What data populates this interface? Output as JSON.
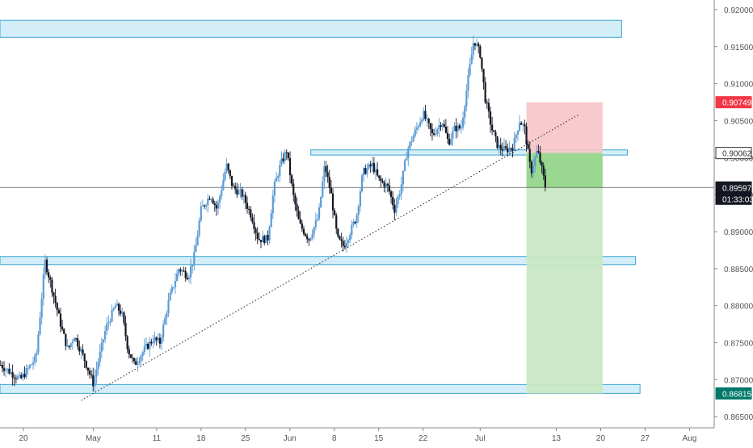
{
  "chart_data": {
    "type": "candlestick",
    "y_axis": {
      "ticks": [
        "0.92000",
        "0.91500",
        "0.91000",
        "0.90500",
        "0.90000",
        "0.89500",
        "0.89000",
        "0.88500",
        "0.88000",
        "0.87500",
        "0.87000",
        "0.86500"
      ],
      "range": [
        0.8635,
        0.9213
      ]
    },
    "x_axis": {
      "ticks": [
        {
          "label": "20",
          "day": 0
        },
        {
          "label": "May",
          "day": 11
        },
        {
          "label": "11",
          "day": 21
        },
        {
          "label": "18",
          "day": 28
        },
        {
          "label": "25",
          "day": 35
        },
        {
          "label": "Jun",
          "day": 42
        },
        {
          "label": "8",
          "day": 49
        },
        {
          "label": "15",
          "day": 56
        },
        {
          "label": "22",
          "day": 63
        },
        {
          "label": "Jul",
          "day": 72
        },
        {
          "label": "13",
          "day": 84
        },
        {
          "label": "20",
          "day": 91
        },
        {
          "label": "27",
          "day": 98
        },
        {
          "label": "Aug",
          "day": 105
        }
      ],
      "range": [
        -3.7,
        108.9
      ]
    },
    "anchors": [
      {
        "day": -3.6,
        "price": 0.872
      },
      {
        "day": -0.5,
        "price": 0.87
      },
      {
        "day": 2,
        "price": 0.873
      },
      {
        "day": 3.4,
        "price": 0.886
      },
      {
        "day": 4.6,
        "price": 0.882
      },
      {
        "day": 6,
        "price": 0.877
      },
      {
        "day": 7,
        "price": 0.874
      },
      {
        "day": 8,
        "price": 0.876
      },
      {
        "day": 9.5,
        "price": 0.873
      },
      {
        "day": 11,
        "price": 0.8695
      },
      {
        "day": 13,
        "price": 0.877
      },
      {
        "day": 14.5,
        "price": 0.88
      },
      {
        "day": 15.5,
        "price": 0.879
      },
      {
        "day": 16.5,
        "price": 0.874
      },
      {
        "day": 17.5,
        "price": 0.872
      },
      {
        "day": 19,
        "price": 0.874
      },
      {
        "day": 20.5,
        "price": 0.8755
      },
      {
        "day": 21.5,
        "price": 0.875
      },
      {
        "day": 23,
        "price": 0.881
      },
      {
        "day": 24.5,
        "price": 0.885
      },
      {
        "day": 26,
        "price": 0.884
      },
      {
        "day": 27,
        "price": 0.887
      },
      {
        "day": 28,
        "price": 0.893
      },
      {
        "day": 29.5,
        "price": 0.895
      },
      {
        "day": 30.5,
        "price": 0.893
      },
      {
        "day": 32,
        "price": 0.899
      },
      {
        "day": 33,
        "price": 0.896
      },
      {
        "day": 34.5,
        "price": 0.895
      },
      {
        "day": 36,
        "price": 0.892
      },
      {
        "day": 37,
        "price": 0.889
      },
      {
        "day": 38.5,
        "price": 0.889
      },
      {
        "day": 39.5,
        "price": 0.896
      },
      {
        "day": 40.5,
        "price": 0.899
      },
      {
        "day": 41.5,
        "price": 0.901
      },
      {
        "day": 42.5,
        "price": 0.895
      },
      {
        "day": 43.5,
        "price": 0.891
      },
      {
        "day": 45,
        "price": 0.889
      },
      {
        "day": 46.5,
        "price": 0.892
      },
      {
        "day": 47.5,
        "price": 0.899
      },
      {
        "day": 48.5,
        "price": 0.895
      },
      {
        "day": 49.5,
        "price": 0.889
      },
      {
        "day": 50.5,
        "price": 0.888
      },
      {
        "day": 51.5,
        "price": 0.89
      },
      {
        "day": 52.5,
        "price": 0.892
      },
      {
        "day": 53.5,
        "price": 0.898
      },
      {
        "day": 55,
        "price": 0.899
      },
      {
        "day": 56,
        "price": 0.897
      },
      {
        "day": 57.5,
        "price": 0.896
      },
      {
        "day": 58.5,
        "price": 0.893
      },
      {
        "day": 59.5,
        "price": 0.896
      },
      {
        "day": 60.5,
        "price": 0.901
      },
      {
        "day": 62,
        "price": 0.904
      },
      {
        "day": 63,
        "price": 0.906
      },
      {
        "day": 64.5,
        "price": 0.903
      },
      {
        "day": 66,
        "price": 0.905
      },
      {
        "day": 67,
        "price": 0.902
      },
      {
        "day": 68,
        "price": 0.904
      },
      {
        "day": 69,
        "price": 0.904
      },
      {
        "day": 70,
        "price": 0.91
      },
      {
        "day": 71,
        "price": 0.916
      },
      {
        "day": 72,
        "price": 0.914
      },
      {
        "day": 72.8,
        "price": 0.908
      },
      {
        "day": 73.8,
        "price": 0.904
      },
      {
        "day": 74.8,
        "price": 0.9015
      },
      {
        "day": 76,
        "price": 0.901
      },
      {
        "day": 77.2,
        "price": 0.9015
      },
      {
        "day": 78.2,
        "price": 0.905
      },
      {
        "day": 79,
        "price": 0.904
      },
      {
        "day": 80,
        "price": 0.898
      },
      {
        "day": 81,
        "price": 0.901
      },
      {
        "day": 81.6,
        "price": 0.899
      },
      {
        "day": 82.3,
        "price": 0.89597
      }
    ],
    "zones": [
      {
        "day_from": -3.7,
        "day_to": 94.3,
        "price_top": 0.91855,
        "price_bottom": 0.91625
      },
      {
        "day_from": 45.3,
        "day_to": 95.2,
        "price_top": 0.90105,
        "price_bottom": 0.90035
      },
      {
        "day_from": -3.7,
        "day_to": 96.5,
        "price_top": 0.88665,
        "price_bottom": 0.88555
      },
      {
        "day_from": -3.7,
        "day_to": 97.2,
        "price_top": 0.86935,
        "price_bottom": 0.86815
      }
    ],
    "trendline": {
      "from": {
        "day": 9.1,
        "price": 0.8672
      },
      "to": {
        "day": 87.5,
        "price": 0.9058
      }
    },
    "position": {
      "day_from": 79.3,
      "day_to": 91.3,
      "stop": 0.90749,
      "entry": 0.90062,
      "current": 0.89597,
      "target": 0.86815
    },
    "price_labels": [
      {
        "text": "0.90749",
        "price": 0.90749,
        "bg": "#f23645",
        "color": "#ffffff"
      },
      {
        "text": "0.90062",
        "price": 0.90062,
        "bg": "#ffffff",
        "color": "#333333"
      },
      {
        "text": "0.89597",
        "price": 0.89597,
        "bg": "#131722",
        "color": "#ffffff"
      },
      {
        "text": "01:33:03",
        "price": null,
        "bg": "#131722",
        "color": "#ffffff"
      },
      {
        "text": "0.86815",
        "price": 0.86815,
        "bg": "#00796b",
        "color": "#ffffff"
      }
    ],
    "colors": {
      "up": "#5b9bd5",
      "down": "#131722",
      "zone_fill": "#d3eef9",
      "zone_stroke": "#3ba4d0",
      "stop_fill": "#f7c4c8",
      "target_fill": "#c9e8c4",
      "target_fill_dark": "#95d68c",
      "axis_text": "#555555",
      "grid": "#e0e3eb"
    }
  }
}
